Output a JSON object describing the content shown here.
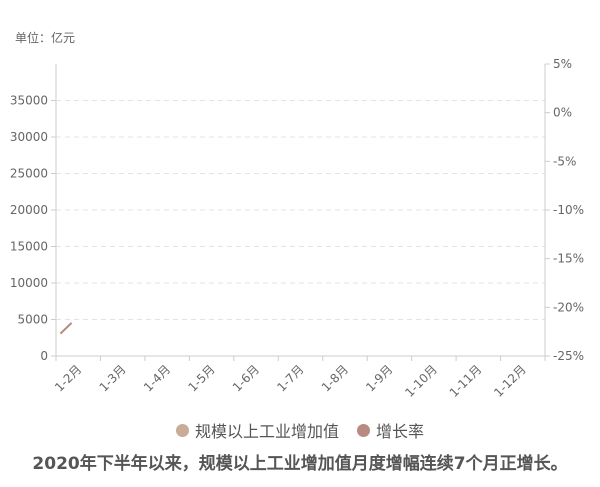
{
  "unit_label": "单位：亿元",
  "caption": "2020年下半年以来，规模以上工业增加值月度增幅连续7个月正增长。",
  "legend": [
    {
      "label": "规模以上工业增加值",
      "color": "#c9ab98"
    },
    {
      "label": "增长率",
      "color": "#b98a82"
    }
  ],
  "chart_data": {
    "type": "line",
    "categories": [
      "1-2月",
      "1-3月",
      "1-4月",
      "1-5月",
      "1-6月",
      "1-7月",
      "1-8月",
      "1-9月",
      "1-10月",
      "1-11月",
      "1-12月"
    ],
    "y_left": {
      "ticks": [
        "0",
        "5000",
        "10000",
        "15000",
        "20000",
        "25000",
        "30000",
        "35000"
      ],
      "range": [
        0,
        40000
      ]
    },
    "y_right": {
      "ticks": [
        "5%",
        "0%",
        "-5%",
        "-10%",
        "-15%",
        "-20%",
        "-25%"
      ],
      "range": [
        -25,
        5
      ]
    },
    "series": [
      {
        "name": "规模以上工业增加值",
        "axis": "left",
        "values": [
          null,
          null,
          null,
          null,
          null,
          null,
          null,
          null,
          null,
          null,
          null
        ]
      },
      {
        "name": "增长率",
        "axis": "right",
        "segment": [
          [
            0.0,
            -22.7
          ],
          [
            0.5,
            -21.6
          ]
        ]
      }
    ],
    "grid": true,
    "legend_position": "bottom"
  }
}
